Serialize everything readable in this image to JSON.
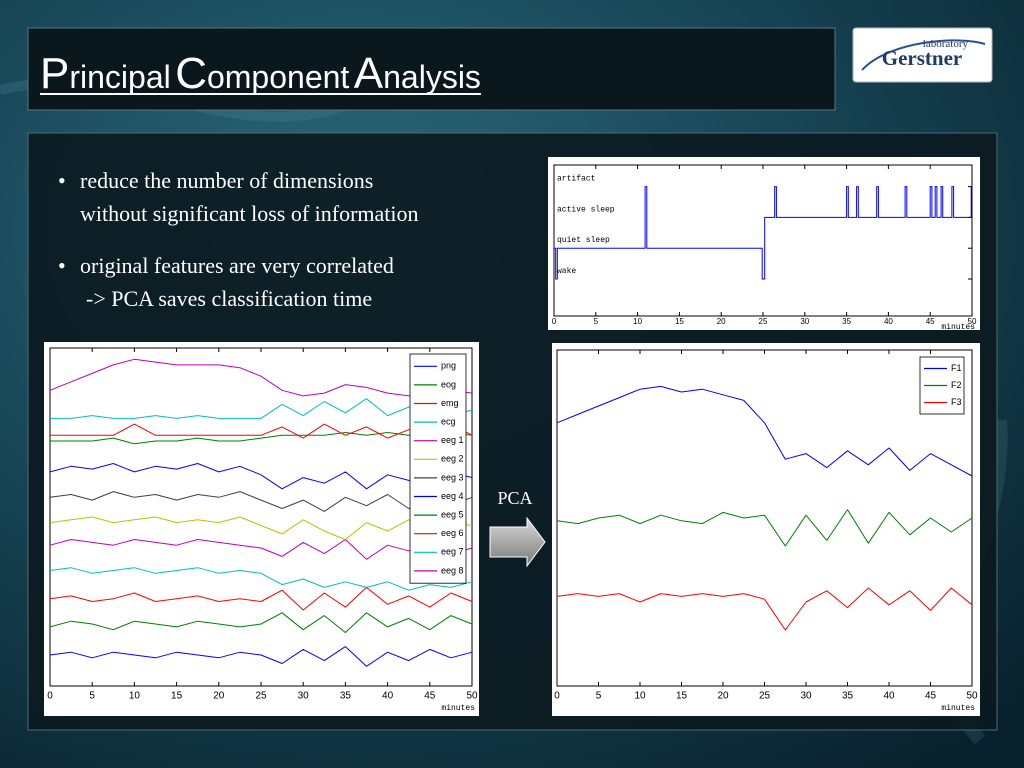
{
  "header": {
    "title": "Principal Component Analysis"
  },
  "logo": {
    "top": "laboratory",
    "name": "Gerstner"
  },
  "bullets": [
    [
      "reduce the number of dimensions",
      "without significant loss of information"
    ],
    [
      "original features are very correlated",
      "-> PCA saves classification time"
    ]
  ],
  "arrow_label": "PCA",
  "chart_data": [
    {
      "type": "line",
      "color": "#0000ff",
      "x": [
        0,
        0.2,
        0.2,
        0.4,
        0.4,
        10.9,
        10.9,
        11.1,
        11.1,
        24.9,
        24.9,
        25.2,
        25.2,
        26.4,
        26.4,
        26.6,
        26.6,
        35,
        35,
        35.2,
        35.2,
        36.2,
        36.2,
        36.4,
        36.4,
        38.6,
        38.6,
        38.8,
        38.8,
        42,
        42,
        42.2,
        42.2,
        45,
        45,
        45.2,
        45.2,
        45.6,
        45.6,
        45.8,
        45.8,
        46.3,
        46.3,
        46.5,
        46.5,
        47.6,
        47.6,
        47.8,
        47.8,
        49.9,
        49.9,
        50
      ],
      "values": [
        1,
        1,
        0,
        0,
        1,
        1,
        3,
        3,
        1,
        1,
        0,
        0,
        2,
        2,
        3,
        3,
        2,
        2,
        3,
        3,
        2,
        2,
        3,
        3,
        2,
        2,
        3,
        3,
        2,
        2,
        3,
        3,
        2,
        2,
        3,
        3,
        2,
        2,
        3,
        3,
        2,
        2,
        3,
        3,
        2,
        2,
        3,
        3,
        2,
        2,
        3,
        3
      ],
      "xlim": [
        0,
        50
      ],
      "xticks": [
        0,
        5,
        10,
        15,
        20,
        25,
        30,
        35,
        40,
        45,
        50
      ],
      "ylim": [
        -1.2,
        3.7
      ],
      "yticks": [
        {
          "value": 0,
          "label": "wake"
        },
        {
          "value": 1,
          "label": "quiet sleep"
        },
        {
          "value": 2,
          "label": "active sleep"
        },
        {
          "value": 3,
          "label": "artifact"
        }
      ],
      "xlabel": "minutes"
    },
    {
      "type": "line",
      "x": [
        0,
        2.5,
        5,
        7.5,
        10,
        12.5,
        15,
        17.5,
        20,
        22.5,
        25,
        27.5,
        30,
        32.5,
        35,
        37.5,
        40,
        42.5,
        45,
        47.5,
        50
      ],
      "xlim": [
        0,
        50
      ],
      "xticks": [
        0,
        5,
        10,
        15,
        20,
        25,
        30,
        35,
        40,
        45,
        50
      ],
      "ylim": [
        0,
        12
      ],
      "xlabel": "minutes",
      "legend": "upper right",
      "series": [
        {
          "name": "png",
          "color": "#0000ff",
          "values": [
            1.1,
            1.2,
            1.0,
            1.2,
            1.1,
            1.0,
            1.2,
            1.1,
            1.0,
            1.2,
            1.1,
            0.8,
            1.3,
            0.9,
            1.4,
            0.7,
            1.2,
            0.9,
            1.3,
            1.0,
            1.2
          ]
        },
        {
          "name": "eog",
          "color": "#008000",
          "values": [
            2.1,
            2.3,
            2.2,
            2.0,
            2.3,
            2.2,
            2.1,
            2.3,
            2.2,
            2.1,
            2.2,
            2.6,
            2.0,
            2.5,
            1.9,
            2.6,
            2.1,
            2.4,
            2.0,
            2.5,
            2.2
          ]
        },
        {
          "name": "emg",
          "color": "#ff0000",
          "values": [
            3.1,
            3.2,
            3.0,
            3.1,
            3.3,
            3.0,
            3.1,
            3.2,
            3.0,
            3.1,
            3.0,
            3.4,
            2.7,
            3.3,
            2.8,
            3.5,
            2.9,
            3.2,
            2.8,
            3.3,
            3.0
          ]
        },
        {
          "name": "ecg",
          "color": "#00bfbf",
          "values": [
            4.1,
            4.2,
            4.0,
            4.1,
            4.2,
            4.0,
            4.1,
            4.2,
            4.0,
            4.1,
            4.0,
            3.6,
            3.8,
            3.5,
            3.7,
            3.5,
            3.7,
            3.4,
            3.6,
            3.5,
            3.7
          ]
        },
        {
          "name": "eeg 1",
          "color": "#bf00bf",
          "values": [
            5.0,
            5.2,
            5.1,
            5.0,
            5.2,
            5.1,
            5.0,
            5.2,
            5.1,
            5.0,
            4.9,
            4.6,
            5.1,
            4.7,
            5.2,
            4.5,
            5.0,
            4.8,
            5.1,
            4.7,
            4.9
          ]
        },
        {
          "name": "eeg 2",
          "color": "#bfbf00",
          "values": [
            5.8,
            5.9,
            6.0,
            5.8,
            5.9,
            6.0,
            5.8,
            5.9,
            5.8,
            6.0,
            5.7,
            5.4,
            5.9,
            5.5,
            5.2,
            5.8,
            5.5,
            5.9,
            5.6,
            5.8,
            5.7
          ]
        },
        {
          "name": "eeg 3",
          "color": "#404040",
          "values": [
            6.7,
            6.8,
            6.6,
            6.9,
            6.7,
            6.8,
            6.6,
            6.8,
            6.7,
            6.9,
            6.6,
            6.3,
            6.6,
            6.2,
            6.7,
            6.4,
            6.8,
            6.3,
            6.6,
            6.4,
            6.7
          ]
        },
        {
          "name": "eeg 4",
          "color": "#0000ff",
          "values": [
            7.6,
            7.8,
            7.7,
            7.9,
            7.6,
            7.8,
            7.7,
            7.9,
            7.6,
            7.8,
            7.5,
            7.0,
            7.4,
            7.2,
            7.6,
            7.0,
            7.5,
            7.3,
            7.1,
            7.6,
            7.4
          ]
        },
        {
          "name": "eeg 5",
          "color": "#008000",
          "values": [
            8.7,
            8.7,
            8.7,
            8.8,
            8.6,
            8.7,
            8.7,
            8.8,
            8.7,
            8.7,
            8.8,
            8.9,
            8.9,
            8.9,
            9.0,
            8.9,
            9.0,
            8.9,
            8.9,
            9.0,
            8.9
          ]
        },
        {
          "name": "eeg 6",
          "color": "#ff0000",
          "values": [
            8.9,
            8.9,
            8.9,
            8.9,
            9.3,
            8.9,
            8.9,
            8.9,
            8.9,
            8.9,
            8.9,
            9.2,
            8.8,
            9.3,
            8.9,
            9.2,
            8.8,
            9.1,
            8.9,
            9.3,
            8.9
          ]
        },
        {
          "name": "eeg 7",
          "color": "#00bfbf",
          "values": [
            9.5,
            9.5,
            9.6,
            9.5,
            9.5,
            9.6,
            9.5,
            9.6,
            9.5,
            9.5,
            9.5,
            10.0,
            9.6,
            10.1,
            9.7,
            10.2,
            9.6,
            9.9,
            10.1,
            9.6,
            9.8
          ]
        },
        {
          "name": "eeg 8",
          "color": "#bf00bf",
          "values": [
            10.5,
            10.8,
            11.1,
            11.4,
            11.6,
            11.5,
            11.4,
            11.4,
            11.4,
            11.3,
            11.0,
            10.5,
            10.3,
            10.4,
            10.7,
            10.6,
            10.4,
            10.3,
            10.4,
            10.5,
            10.4
          ]
        }
      ]
    },
    {
      "type": "line",
      "x": [
        0,
        2.5,
        5,
        7.5,
        10,
        12.5,
        15,
        17.5,
        20,
        22.5,
        25,
        27.5,
        30,
        32.5,
        35,
        37.5,
        40,
        42.5,
        45,
        47.5,
        50
      ],
      "xlim": [
        0,
        50
      ],
      "xticks": [
        0,
        5,
        10,
        15,
        20,
        25,
        30,
        35,
        40,
        45,
        50
      ],
      "ylim": [
        0,
        12
      ],
      "xlabel": "minutes",
      "legend": "upper right",
      "series": [
        {
          "name": "F1",
          "color": "#0000ff",
          "values": [
            9.4,
            9.7,
            10.0,
            10.3,
            10.6,
            10.7,
            10.5,
            10.6,
            10.4,
            10.2,
            9.4,
            8.1,
            8.3,
            7.8,
            8.4,
            7.9,
            8.5,
            7.7,
            8.3,
            7.9,
            7.5
          ]
        },
        {
          "name": "F2",
          "color": "#008000",
          "values": [
            5.9,
            5.8,
            6.0,
            6.1,
            5.8,
            6.1,
            5.9,
            5.8,
            6.2,
            6.0,
            6.1,
            5.0,
            6.1,
            5.2,
            6.3,
            5.1,
            6.2,
            5.4,
            6.0,
            5.5,
            6.0
          ]
        },
        {
          "name": "F3",
          "color": "#ff0000",
          "values": [
            3.2,
            3.3,
            3.2,
            3.3,
            3.0,
            3.3,
            3.2,
            3.3,
            3.2,
            3.3,
            3.1,
            2.0,
            3.0,
            3.4,
            2.8,
            3.5,
            2.9,
            3.4,
            2.7,
            3.5,
            2.9
          ]
        }
      ]
    }
  ]
}
